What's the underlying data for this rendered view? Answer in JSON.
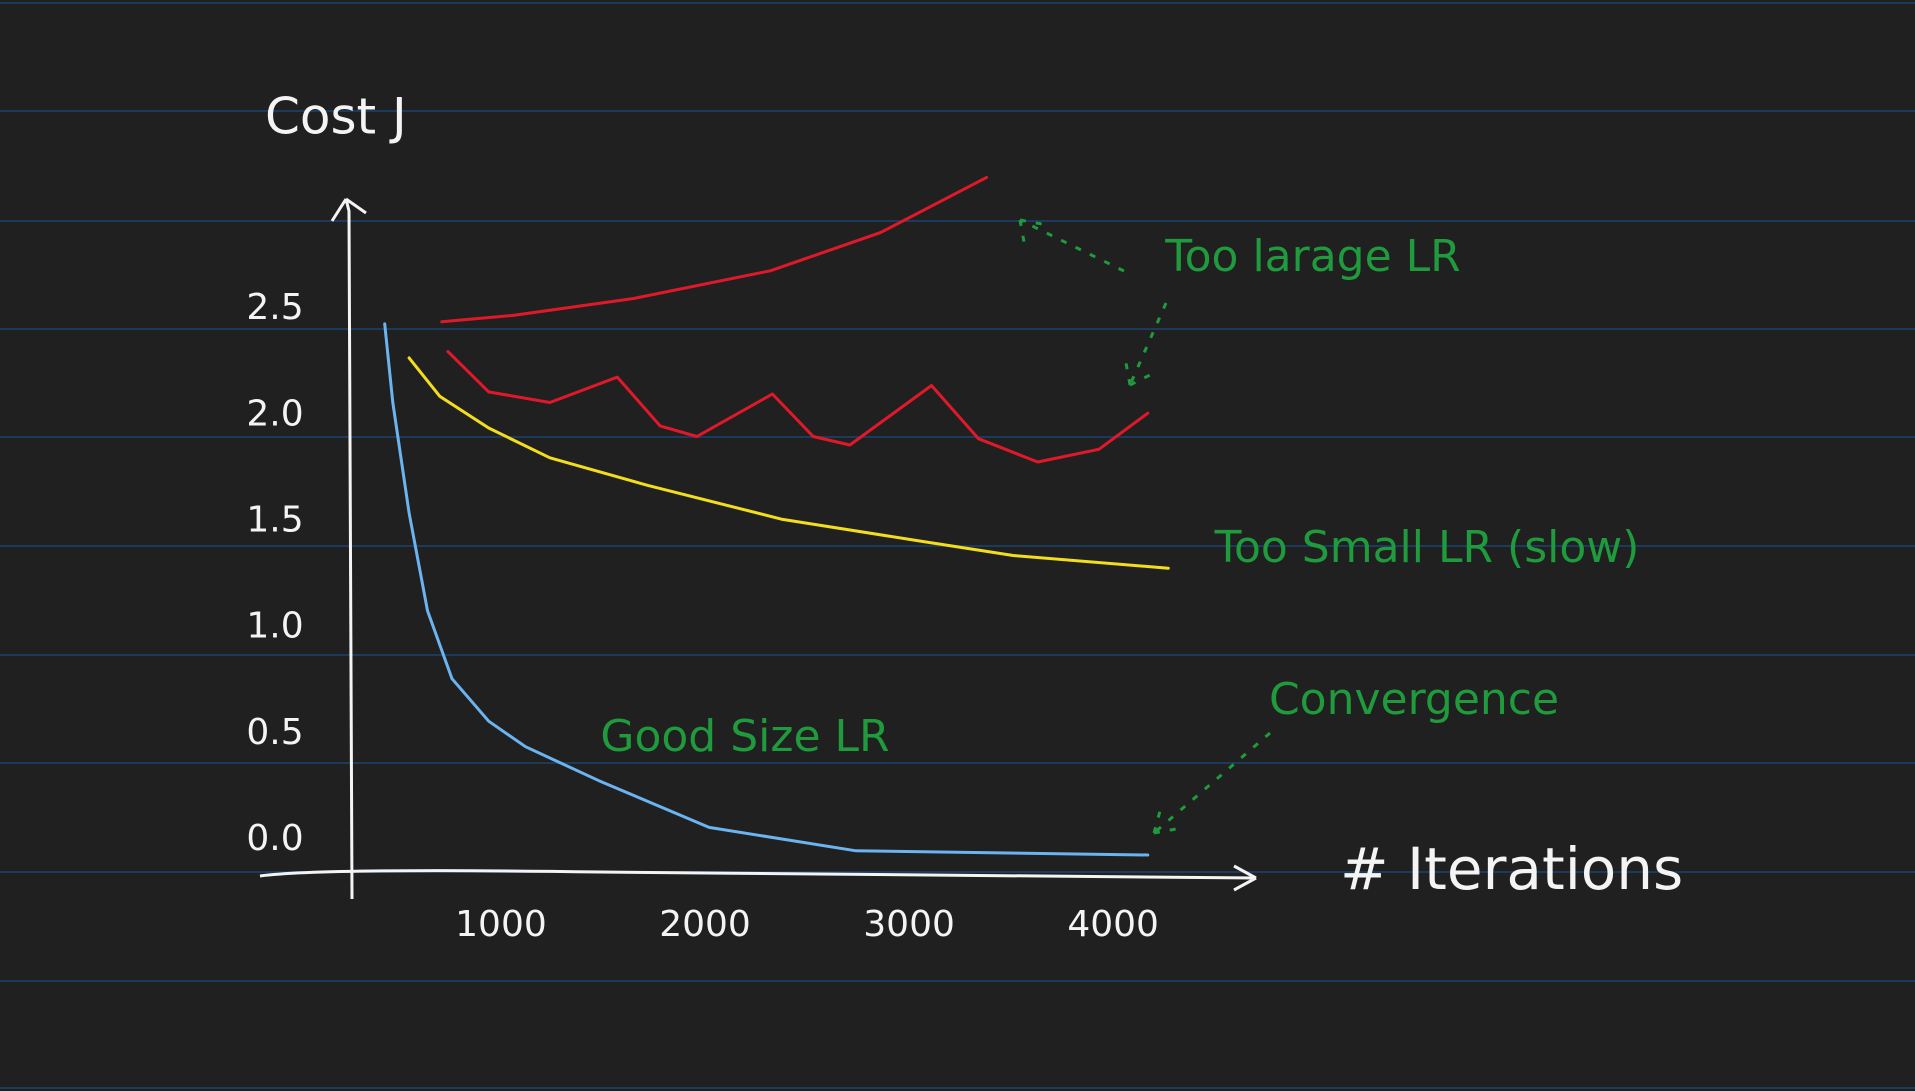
{
  "chart_data": {
    "type": "line",
    "y_label": "Cost J",
    "x_label": "# Iterations",
    "xlim": [
      270,
      4700
    ],
    "ylim": [
      -0.15,
      3.15
    ],
    "xticks": [
      1000,
      2000,
      3000,
      4000
    ],
    "yticks": [
      {
        "value": 0,
        "label": "0.0"
      },
      {
        "value": 0.5,
        "label": "0.5"
      },
      {
        "value": 1,
        "label": "1.0"
      },
      {
        "value": 1.5,
        "label": "1.5"
      },
      {
        "value": 2,
        "label": "2.0"
      },
      {
        "value": 2.5,
        "label": "2.5"
      }
    ],
    "series": [
      {
        "name": "Too larage LR",
        "color": "#e0192a",
        "x": [
          710,
          1060,
          1650,
          2320,
          2860,
          3380
        ],
        "values": [
          2.44,
          2.47,
          2.55,
          2.68,
          2.86,
          3.12
        ]
      },
      {
        "color": "#e0192a",
        "x": [
          740,
          940,
          1240,
          1570,
          1780,
          1960,
          2330,
          2530,
          2710,
          3110,
          3340,
          3630,
          3930,
          4170
        ],
        "values": [
          2.3,
          2.11,
          2.06,
          2.18,
          1.95,
          1.9,
          2.1,
          1.9,
          1.86,
          2.14,
          1.89,
          1.78,
          1.84,
          2.01
        ]
      },
      {
        "name": "Too Small LR (slow)",
        "color": "#f2de1d",
        "x": [
          550,
          700,
          940,
          1240,
          1720,
          2380,
          3040,
          3510,
          4270
        ],
        "values": [
          2.27,
          2.09,
          1.94,
          1.8,
          1.67,
          1.51,
          1.41,
          1.34,
          1.28
        ]
      },
      {
        "name": "Good Size LR",
        "color": "#6cb4f0",
        "x": [
          430,
          470,
          550,
          640,
          760,
          940,
          1120,
          1480,
          2020,
          2740,
          4170
        ],
        "values": [
          2.43,
          2.06,
          1.54,
          1.08,
          0.76,
          0.56,
          0.44,
          0.28,
          0.06,
          -0.05,
          -0.07
        ]
      }
    ],
    "annotations": [
      "Convergence"
    ]
  }
}
